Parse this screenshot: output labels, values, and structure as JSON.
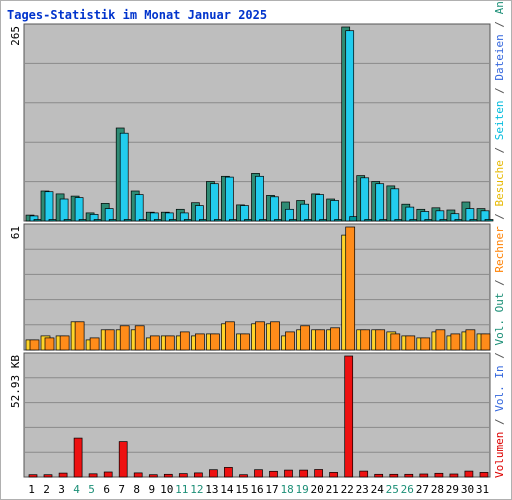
{
  "chart_data": {
    "type": "bar",
    "title": "Tages-Statistik im Monat Januar 2025",
    "categories": [
      "1",
      "2",
      "3",
      "4",
      "5",
      "6",
      "7",
      "8",
      "9",
      "10",
      "11",
      "12",
      "13",
      "14",
      "15",
      "16",
      "17",
      "18",
      "19",
      "20",
      "21",
      "22",
      "23",
      "24",
      "25",
      "26",
      "27",
      "28",
      "29",
      "30",
      "31"
    ],
    "weekend_days": [
      "4",
      "5",
      "11",
      "12",
      "18",
      "19",
      "25",
      "26"
    ],
    "panels": [
      {
        "id": "top",
        "ymax_label": "265",
        "ymax": 265,
        "series": [
          {
            "name": "Anfragen",
            "color": "#2E8B74",
            "values": [
              8,
              41,
              37,
              34,
              11,
              24,
              127,
              41,
              12,
              12,
              16,
              25,
              54,
              61,
              22,
              65,
              35,
              26,
              28,
              37,
              30,
              265,
              62,
              54,
              48,
              23,
              16,
              18,
              15,
              26,
              17
            ]
          },
          {
            "name": "Dateien",
            "color": "#22CCEE",
            "values": [
              7,
              40,
              30,
              32,
              9,
              17,
              120,
              36,
              11,
              11,
              11,
              21,
              51,
              60,
              21,
              61,
              33,
              16,
              23,
              36,
              28,
              260,
              59,
              51,
              44,
              19,
              13,
              14,
              10,
              17,
              14
            ]
          },
          {
            "name": "Seiten",
            "color": "#009999",
            "values": [
              1,
              1,
              1,
              1,
              1,
              1,
              2,
              1,
              1,
              1,
              1,
              1,
              2,
              2,
              1,
              2,
              1,
              1,
              1,
              1,
              1,
              6,
              2,
              2,
              1,
              1,
              1,
              1,
              1,
              1,
              1
            ]
          }
        ]
      },
      {
        "id": "middle",
        "ymax_label": "61",
        "ymax": 61,
        "series": [
          {
            "name": "Besuche",
            "color": "#FFD42A",
            "values": [
              5,
              7,
              7,
              14,
              5,
              10,
              10,
              10,
              6,
              7,
              7,
              7,
              8,
              13,
              8,
              13,
              13,
              7,
              10,
              10,
              10,
              57,
              10,
              10,
              9,
              7,
              6,
              9,
              7,
              9,
              8
            ]
          },
          {
            "name": "Rechner",
            "color": "#FF8C1A",
            "values": [
              5,
              6,
              7,
              14,
              6,
              10,
              12,
              12,
              7,
              7,
              9,
              8,
              8,
              14,
              8,
              14,
              14,
              9,
              12,
              10,
              11,
              61,
              10,
              10,
              8,
              7,
              6,
              10,
              8,
              10,
              8
            ]
          }
        ]
      },
      {
        "id": "bottom",
        "ymax_label": "52.93 KB",
        "ymax": 52.93,
        "series": [
          {
            "name": "Volumen",
            "color": "#EE1111",
            "values": [
              1.0,
              1.0,
              1.7,
              17.0,
              1.4,
              2.2,
              15.5,
              1.8,
              1.0,
              1.2,
              1.5,
              1.8,
              3.2,
              4.2,
              1.0,
              3.2,
              2.5,
              3.0,
              3.0,
              3.3,
              2.0,
              52.93,
              2.6,
              1.2,
              1.2,
              1.2,
              1.3,
              1.6,
              1.3,
              2.6,
              2.0
            ]
          }
        ]
      }
    ],
    "right_legend": [
      {
        "text": "Volumen",
        "color": "#DD0000"
      },
      {
        "text": " / ",
        "color": "#555555"
      },
      {
        "text": "Vol. In",
        "color": "#3366DD"
      },
      {
        "text": " / ",
        "color": "#555555"
      },
      {
        "text": "Vol. Out",
        "color": "#1C8F77"
      },
      {
        "text": " / ",
        "color": "#555555"
      },
      {
        "text": "Rechner",
        "color": "#FF8000"
      },
      {
        "text": " / ",
        "color": "#555555"
      },
      {
        "text": "Besuche",
        "color": "#E6B800"
      },
      {
        "text": " / ",
        "color": "#555555"
      },
      {
        "text": "Seiten",
        "color": "#00BBDD"
      },
      {
        "text": " / ",
        "color": "#555555"
      },
      {
        "text": "Dateien",
        "color": "#3366DD"
      },
      {
        "text": " / ",
        "color": "#555555"
      },
      {
        "text": "Anfragen",
        "color": "#1C8F77"
      }
    ],
    "grid": true,
    "background_color": "#BEBEBE",
    "title_color": "#0033CC",
    "weekday_label_color": "#000000",
    "weekend_label_color": "#1C8F77"
  }
}
